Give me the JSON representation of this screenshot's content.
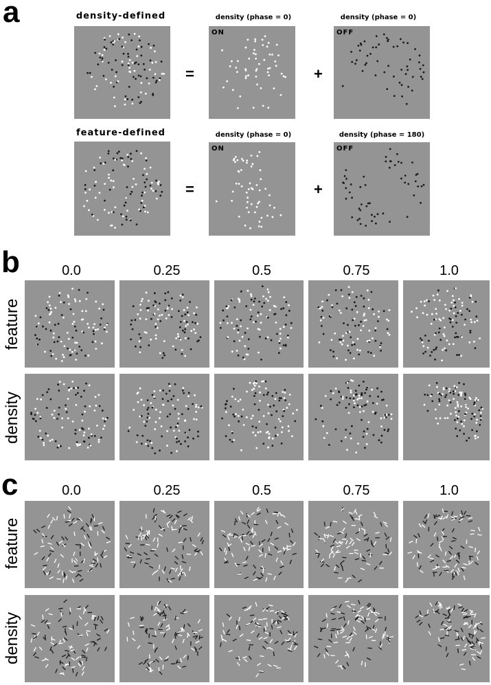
{
  "panel_a": {
    "letter": "a",
    "row1": {
      "title": "density-defined",
      "equals": "=",
      "plus": "+",
      "mid_title": "density (phase = 0)",
      "mid_tag": "ON",
      "right_title": "density (phase = 0)",
      "right_tag": "OFF"
    },
    "row2": {
      "title": "feature-defined",
      "equals": "=",
      "plus": "+",
      "mid_title": "density (phase = 0)",
      "mid_tag": "ON",
      "right_title": "density (phase = 180)",
      "right_tag": "OFF"
    }
  },
  "panel_b": {
    "letter": "b",
    "columns": [
      "0.0",
      "0.25",
      "0.5",
      "0.75",
      "1.0"
    ],
    "rows": [
      "feature",
      "density"
    ]
  },
  "panel_c": {
    "letter": "c",
    "columns": [
      "0.0",
      "0.25",
      "0.5",
      "0.75",
      "1.0"
    ],
    "rows": [
      "feature",
      "density"
    ]
  },
  "colors": {
    "panel_background": "#949494",
    "dot_on": "#ffffff",
    "dot_off": "#1a1a1a"
  }
}
